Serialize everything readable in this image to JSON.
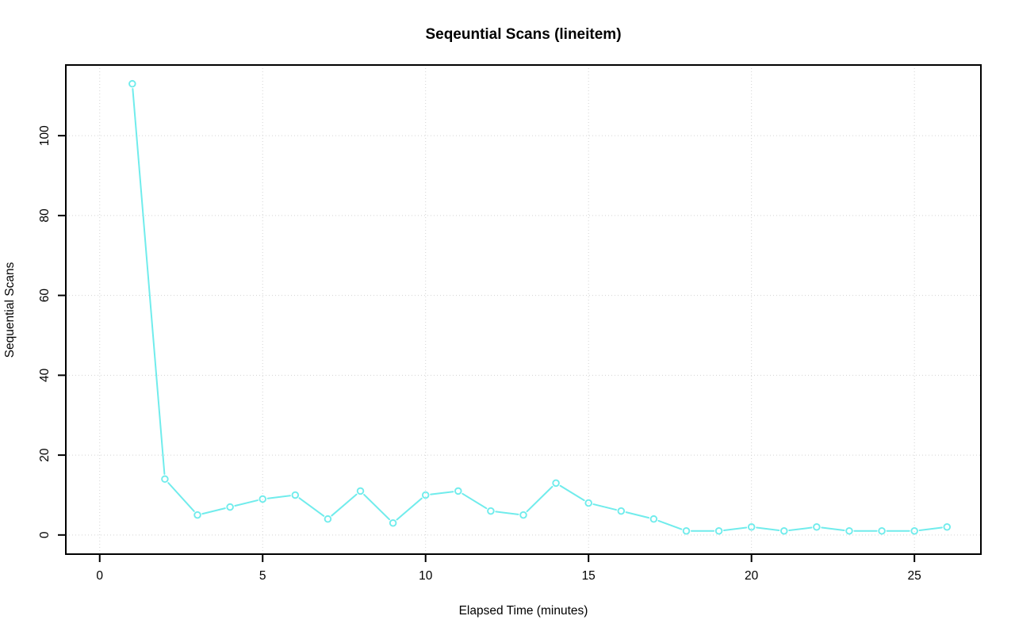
{
  "page": {
    "background_color": "#ffffff"
  },
  "chart_data": {
    "type": "line",
    "title": "Seqeuntial Scans (lineitem)",
    "xlabel": "Elapsed Time (minutes)",
    "ylabel": "Sequential Scans",
    "x": [
      1,
      2,
      3,
      4,
      5,
      6,
      7,
      8,
      9,
      10,
      11,
      12,
      13,
      14,
      15,
      16,
      17,
      18,
      19,
      20,
      21,
      22,
      23,
      24,
      25,
      26
    ],
    "values": [
      113,
      14,
      5,
      7,
      9,
      10,
      4,
      11,
      3,
      10,
      11,
      6,
      5,
      13,
      8,
      6,
      4,
      1,
      1,
      2,
      1,
      2,
      1,
      1,
      1,
      2
    ],
    "xticks": [
      0,
      5,
      10,
      15,
      20,
      25
    ],
    "yticks": [
      0,
      20,
      40,
      60,
      80,
      100
    ],
    "xlim": [
      -1.04,
      27.04
    ],
    "ylim": [
      -4.8,
      117.7
    ],
    "grid": "dotted",
    "legend": "none",
    "marker": "open-circle",
    "line_style": "segments-between-markers",
    "line_color": "#70ECEC",
    "grid_color": "#D3D3D3",
    "axis_color": "#000000",
    "text_color": "#000000",
    "background_color": "#FFFFFF"
  }
}
